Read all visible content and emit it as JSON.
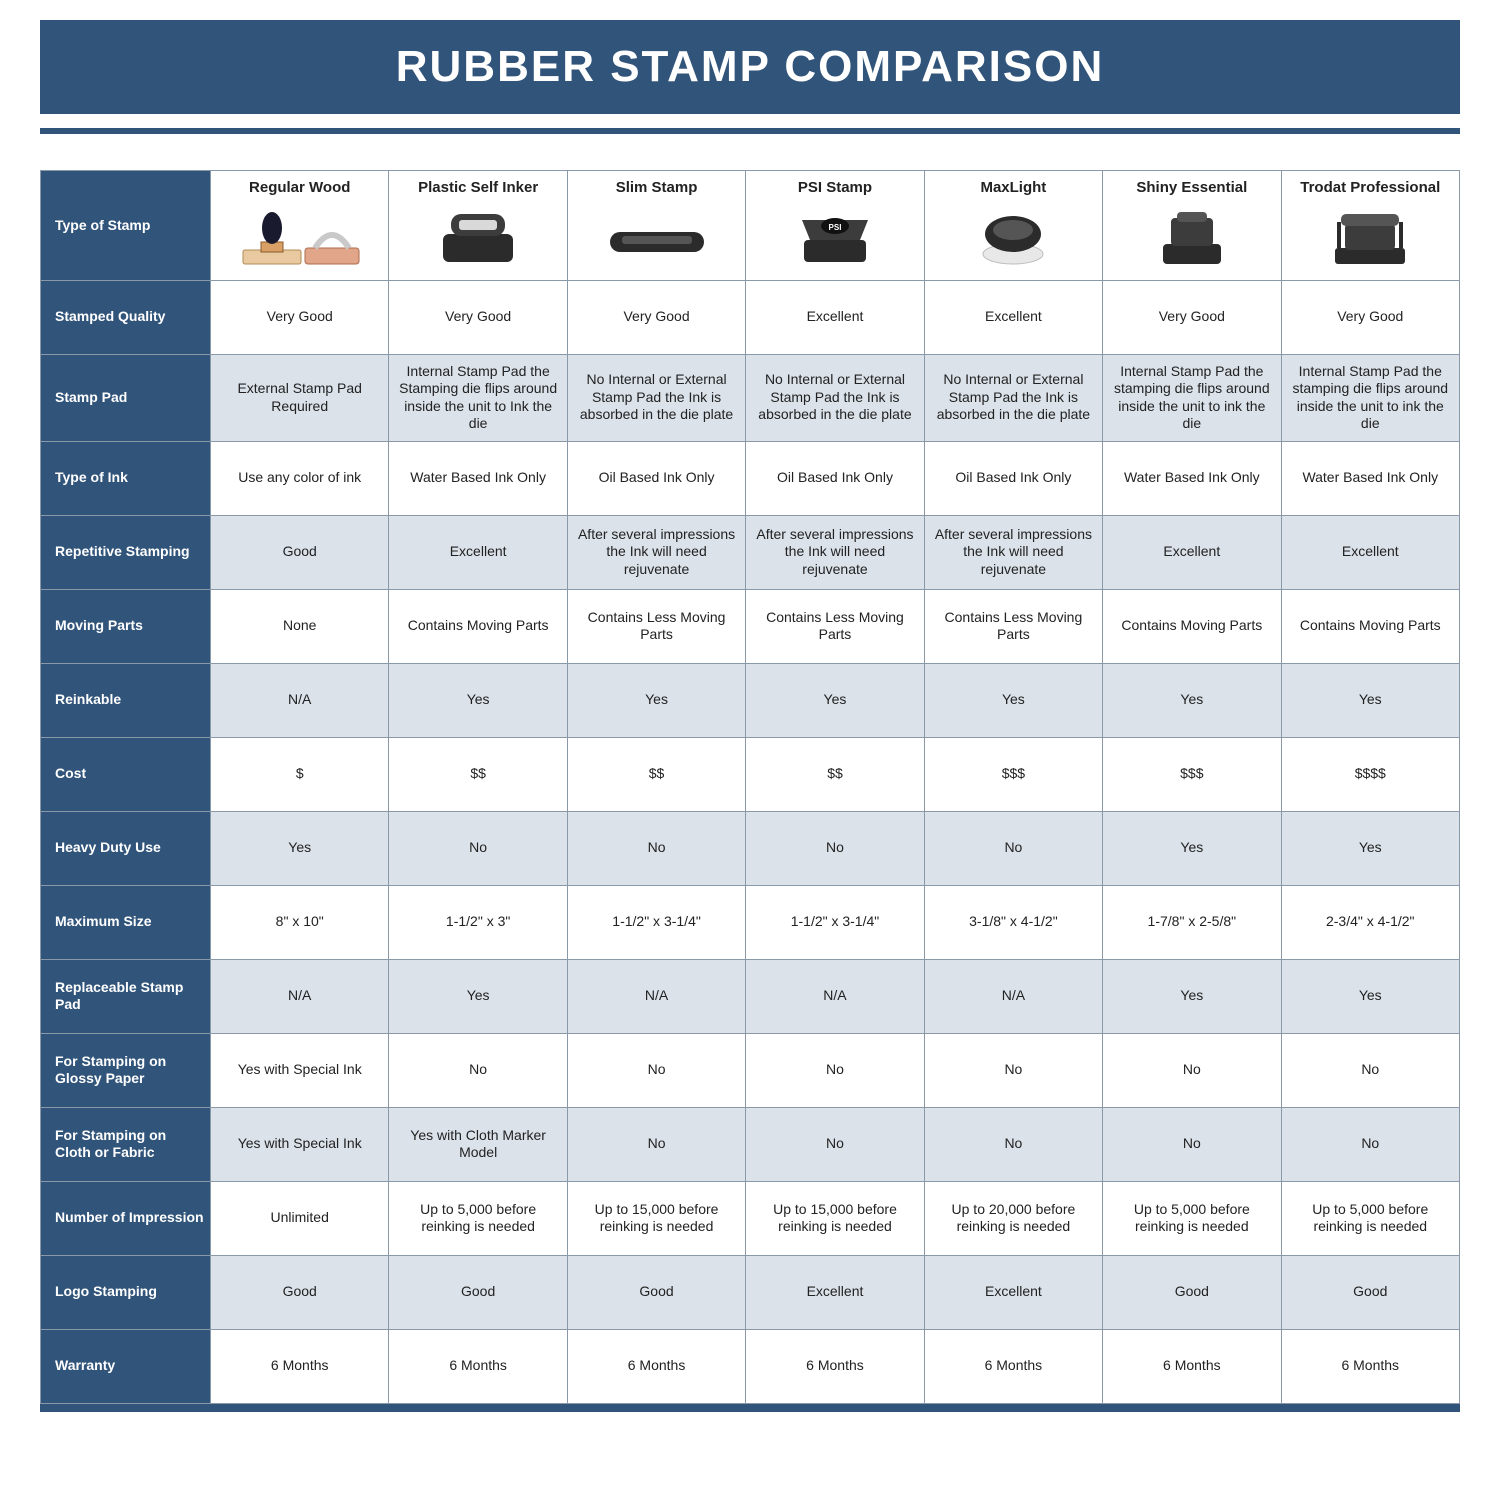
{
  "title": "RUBBER STAMP COMPARISON",
  "colors": {
    "navy": "#31547a",
    "alt_row": "#dbe2ea",
    "border": "#8a99a8",
    "text": "#222222",
    "white": "#ffffff"
  },
  "columns": [
    "Regular Wood",
    "Plastic Self Inker",
    "Slim Stamp",
    "PSI Stamp",
    "MaxLight",
    "Shiny Essential",
    "Trodat Professional"
  ],
  "row_header_first": "Type of Stamp",
  "rows": [
    {
      "label": "Stamped Quality",
      "alt": false,
      "cells": [
        "Very Good",
        "Very Good",
        "Very Good",
        "Excellent",
        "Excellent",
        "Very Good",
        "Very Good"
      ]
    },
    {
      "label": "Stamp Pad",
      "alt": true,
      "cells": [
        "External Stamp Pad Required",
        "Internal Stamp Pad the Stamping die flips around inside the unit to Ink the die",
        "No Internal or External Stamp Pad the Ink is absorbed in the die plate",
        "No Internal or External Stamp Pad the Ink is absorbed in the die plate",
        "No Internal or External Stamp Pad the Ink is absorbed in the die plate",
        "Internal Stamp Pad the stamping die flips around inside the unit to ink the die",
        "Internal Stamp Pad the stamping die flips around inside the unit to ink the die"
      ]
    },
    {
      "label": "Type of Ink",
      "alt": false,
      "cells": [
        "Use any color of ink",
        "Water Based Ink Only",
        "Oil Based Ink Only",
        "Oil Based Ink Only",
        "Oil Based Ink Only",
        "Water Based Ink Only",
        "Water Based Ink Only"
      ]
    },
    {
      "label": "Repetitive Stamping",
      "alt": true,
      "cells": [
        "Good",
        "Excellent",
        "After several impressions the Ink will need rejuvenate",
        "After several impressions the Ink will need rejuvenate",
        "After several impressions the Ink will need rejuvenate",
        "Excellent",
        "Excellent"
      ]
    },
    {
      "label": "Moving Parts",
      "alt": false,
      "cells": [
        "None",
        "Contains Moving Parts",
        "Contains Less Moving Parts",
        "Contains Less Moving Parts",
        "Contains Less Moving Parts",
        "Contains Moving Parts",
        "Contains Moving Parts"
      ]
    },
    {
      "label": "Reinkable",
      "alt": true,
      "cells": [
        "N/A",
        "Yes",
        "Yes",
        "Yes",
        "Yes",
        "Yes",
        "Yes"
      ]
    },
    {
      "label": "Cost",
      "alt": false,
      "cells": [
        "$",
        "$$",
        "$$",
        "$$",
        "$$$",
        "$$$",
        "$$$$"
      ]
    },
    {
      "label": "Heavy Duty Use",
      "alt": true,
      "cells": [
        "Yes",
        "No",
        "No",
        "No",
        "No",
        "Yes",
        "Yes"
      ]
    },
    {
      "label": "Maximum Size",
      "alt": false,
      "cells": [
        "8\" x 10\"",
        "1-1/2\" x 3\"",
        "1-1/2\" x 3-1/4\"",
        "1-1/2\" x 3-1/4\"",
        "3-1/8\" x 4-1/2\"",
        "1-7/8\" x 2-5/8\"",
        "2-3/4\" x 4-1/2\""
      ]
    },
    {
      "label": "Replaceable Stamp Pad",
      "alt": true,
      "cells": [
        "N/A",
        "Yes",
        "N/A",
        "N/A",
        "N/A",
        "Yes",
        "Yes"
      ]
    },
    {
      "label": "For Stamping on Glossy Paper",
      "alt": false,
      "cells": [
        "Yes with Special Ink",
        "No",
        "No",
        "No",
        "No",
        "No",
        "No"
      ]
    },
    {
      "label": "For Stamping on Cloth or Fabric",
      "alt": true,
      "cells": [
        "Yes with Special Ink",
        "Yes with Cloth Marker Model",
        "No",
        "No",
        "No",
        "No",
        "No"
      ]
    },
    {
      "label": "Number of Impression",
      "alt": false,
      "cells": [
        "Unlimited",
        "Up to 5,000 before reinking is needed",
        "Up to 15,000 before reinking is needed",
        "Up to 15,000 before reinking is needed",
        "Up to 20,000 before reinking is needed",
        "Up to 5,000 before reinking is needed",
        "Up to 5,000 before reinking is needed"
      ]
    },
    {
      "label": "Logo Stamping",
      "alt": true,
      "cells": [
        "Good",
        "Good",
        "Good",
        "Excellent",
        "Excellent",
        "Good",
        "Good"
      ]
    },
    {
      "label": "Warranty",
      "alt": false,
      "cells": [
        "6 Months",
        "6 Months",
        "6 Months",
        "6 Months",
        "6 Months",
        "6 Months",
        "6 Months"
      ]
    }
  ],
  "icons": [
    "regular-wood",
    "plastic-self-inker",
    "slim-stamp",
    "psi-stamp",
    "maxlight",
    "shiny-essential",
    "trodat-professional"
  ]
}
